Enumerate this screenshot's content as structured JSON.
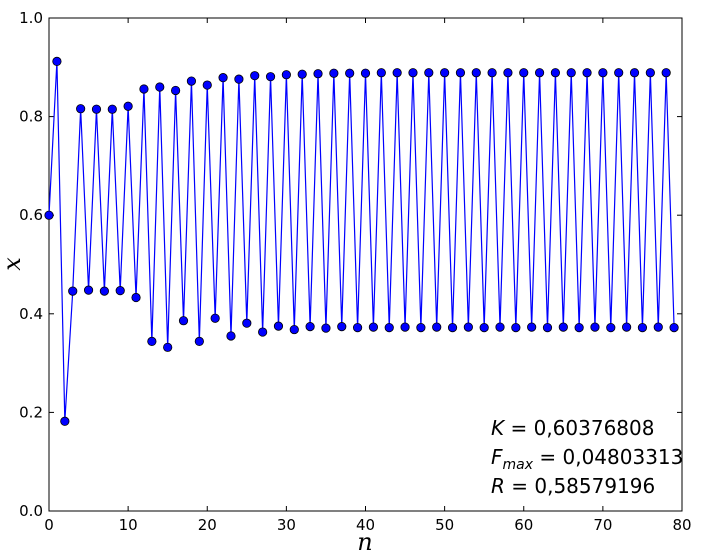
{
  "chart_data": {
    "type": "line",
    "xlabel": "n",
    "ylabel": "x",
    "xlim": [
      0,
      80
    ],
    "ylim": [
      0.0,
      1.0
    ],
    "x_ticks": [
      "0",
      "10",
      "20",
      "30",
      "40",
      "50",
      "60",
      "70",
      "80"
    ],
    "y_ticks": [
      "0.0",
      "0.2",
      "0.4",
      "0.6",
      "0.8",
      "1.0"
    ],
    "grid": false,
    "series": [
      {
        "color": "#0000ff",
        "marker": "circle",
        "x": [
          0,
          1,
          2,
          3,
          4,
          5,
          6,
          7,
          8,
          9,
          10,
          11,
          12,
          13,
          14,
          15,
          16,
          17,
          18,
          19,
          20,
          21,
          22,
          23,
          24,
          25,
          26,
          27,
          28,
          29,
          30,
          31,
          32,
          33,
          34,
          35,
          36,
          37,
          38,
          39,
          40,
          41,
          42,
          43,
          44,
          45,
          46,
          47,
          48,
          49,
          50,
          51,
          52,
          53,
          54,
          55,
          56,
          57,
          58,
          59,
          60,
          61,
          62,
          63,
          64,
          65,
          66,
          67,
          68,
          69,
          70,
          71,
          72,
          73,
          74,
          75,
          76,
          77,
          78,
          79
        ],
        "y": [
          0.6,
          0.912,
          0.182,
          0.446,
          0.816,
          0.448,
          0.815,
          0.446,
          0.815,
          0.447,
          0.821,
          0.433,
          0.856,
          0.344,
          0.86,
          0.332,
          0.853,
          0.386,
          0.872,
          0.344,
          0.864,
          0.391,
          0.879,
          0.355,
          0.876,
          0.381,
          0.883,
          0.363,
          0.881,
          0.375,
          0.885,
          0.368,
          0.886,
          0.374,
          0.887,
          0.371,
          0.888,
          0.374,
          0.888,
          0.372,
          0.888,
          0.373,
          0.889,
          0.372,
          0.889,
          0.373,
          0.889,
          0.372,
          0.889,
          0.373,
          0.889,
          0.372,
          0.889,
          0.373,
          0.889,
          0.372,
          0.889,
          0.373,
          0.889,
          0.372,
          0.889,
          0.373,
          0.889,
          0.372,
          0.889,
          0.373,
          0.889,
          0.372,
          0.889,
          0.373,
          0.889,
          0.372,
          0.889,
          0.373,
          0.889,
          0.372,
          0.889,
          0.373,
          0.889,
          0.372
        ]
      }
    ],
    "annotation": {
      "K": {
        "symbol": "K",
        "text": " = 0,60376808"
      },
      "Fmax": {
        "symbol": "F",
        "sub": "max",
        "text": " = 0,04803313"
      },
      "R": {
        "symbol": "R",
        "text": " = 0,58579196"
      }
    }
  }
}
